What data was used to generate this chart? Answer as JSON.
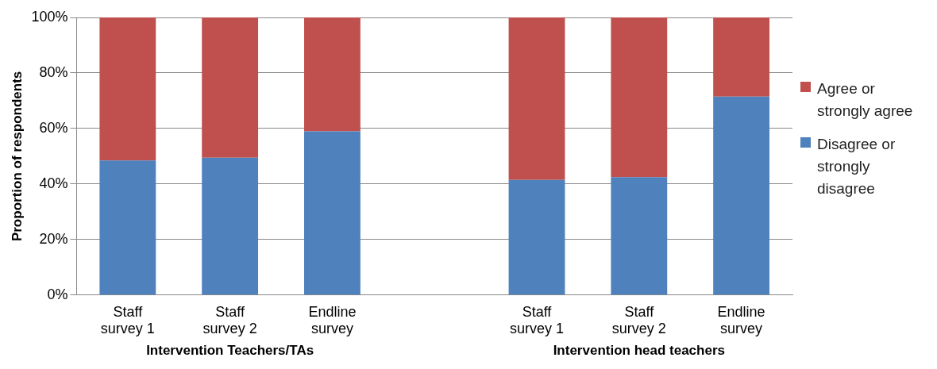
{
  "chart_data": {
    "type": "bar",
    "stacked": true,
    "ylabel": "Proportion of respondents",
    "categories": [
      "Staff survey 1",
      "Staff survey 2",
      "Endline survey",
      null,
      "Staff survey 1",
      "Staff survey 2",
      "Endline survey"
    ],
    "series": [
      {
        "name": "Disagree or strongly disagree",
        "color": "#4f81bd",
        "values": [
          48.5,
          49.5,
          59,
          null,
          41.5,
          42.5,
          71.5
        ]
      },
      {
        "name": "Agree or strongly agree",
        "color": "#c0504d",
        "values": [
          51.5,
          50.5,
          41,
          null,
          58.5,
          57.5,
          28.5
        ]
      }
    ],
    "ylim": [
      0,
      100
    ],
    "yticks": [
      {
        "value": 0,
        "label": "0%"
      },
      {
        "value": 20,
        "label": "20%"
      },
      {
        "value": 40,
        "label": "40%"
      },
      {
        "value": 60,
        "label": "60%"
      },
      {
        "value": 80,
        "label": "80%"
      },
      {
        "value": 100,
        "label": "100%"
      }
    ],
    "grid": "y",
    "legend": "right",
    "annotations": [
      "Intervention Teachers/TAs",
      "Intervention head teachers"
    ]
  }
}
